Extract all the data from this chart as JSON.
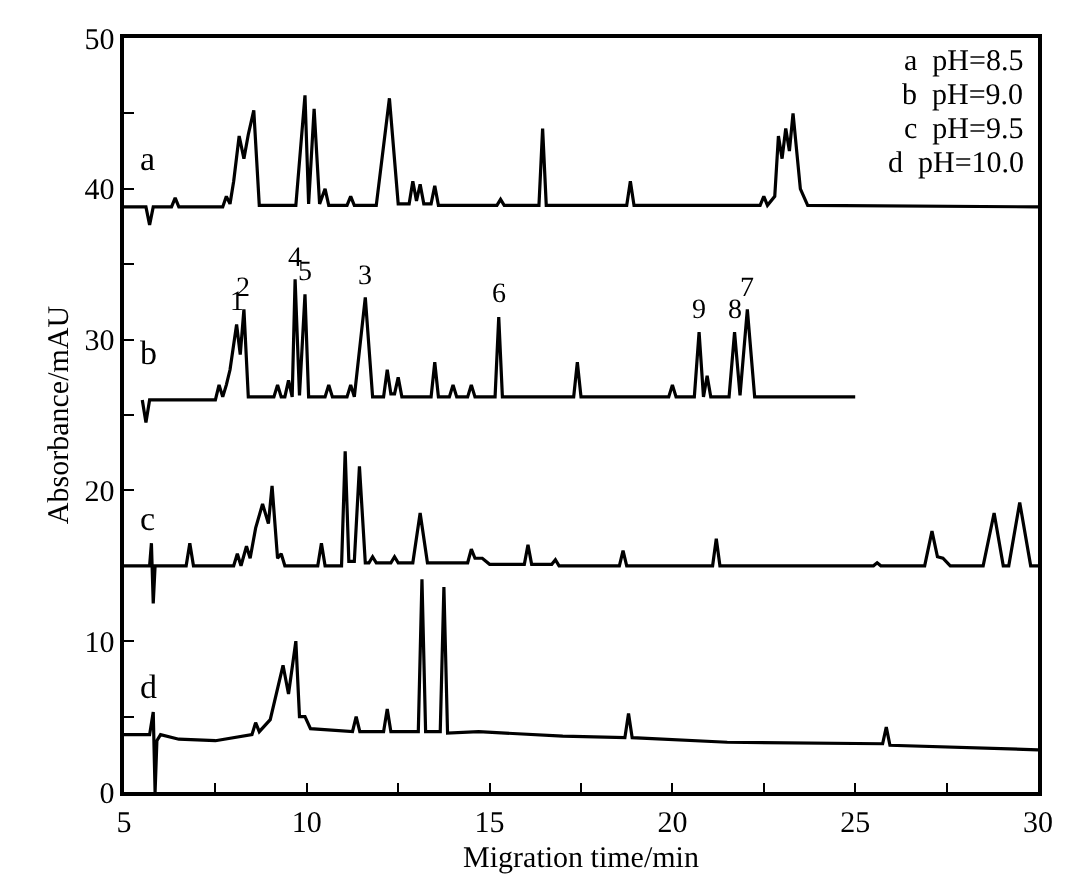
{
  "chart_data": {
    "type": "line",
    "xlabel": "Migration time/min",
    "ylabel": "Absorbance/mAU",
    "xlim": [
      5,
      30
    ],
    "ylim": [
      0,
      50
    ],
    "xticks": [
      5,
      {
        "value": 7.5,
        "label": null
      },
      10,
      {
        "value": 12.5,
        "label": null
      },
      15,
      {
        "value": 17.5,
        "label": null
      },
      20,
      {
        "value": 22.5,
        "label": null
      },
      25,
      {
        "value": 27.5,
        "label": null
      },
      30
    ],
    "yticks": [
      0,
      {
        "value": 5,
        "label": null
      },
      10,
      {
        "value": 15,
        "label": null
      },
      20,
      {
        "value": 25,
        "label": null
      },
      30,
      {
        "value": 35,
        "label": null
      },
      40,
      {
        "value": 45,
        "label": null
      },
      50
    ],
    "legend": false,
    "marker": "none",
    "line_style": "solid",
    "series": [
      {
        "name": "a",
        "color": "#000000",
        "x": [
          5,
          5.6,
          5.7,
          5.8,
          6.3,
          6.4,
          6.5,
          7.7,
          7.8,
          7.9,
          8.0,
          8.15,
          8.28,
          8.4,
          8.55,
          8.7,
          9.7,
          9.95,
          10.05,
          10.2,
          10.35,
          10.5,
          10.6,
          11.1,
          11.2,
          11.3,
          11.9,
          12.26,
          12.5,
          12.8,
          12.9,
          13.0,
          13.1,
          13.2,
          13.4,
          13.5,
          13.6,
          15.2,
          15.3,
          15.4,
          16.35,
          16.45,
          16.55,
          18.75,
          18.85,
          18.95,
          22.4,
          22.5,
          22.6,
          22.8,
          22.9,
          23.0,
          23.1,
          23.2,
          23.3,
          23.5,
          23.7,
          30
        ],
        "values": [
          38.8,
          38.8,
          37.6,
          38.8,
          38.8,
          39.4,
          38.8,
          38.8,
          39.5,
          39,
          40.5,
          43.5,
          42,
          43.6,
          45.2,
          38.9,
          38.9,
          46.2,
          39,
          45.3,
          39,
          40,
          38.9,
          38.9,
          39.5,
          38.9,
          38.9,
          46,
          39,
          39,
          40.5,
          39.2,
          40.3,
          39,
          39,
          40.2,
          38.9,
          38.9,
          39.3,
          38.9,
          38.9,
          44,
          38.9,
          38.9,
          40.5,
          38.9,
          38.9,
          39.5,
          38.9,
          39.5,
          43.5,
          42,
          44,
          42.5,
          45,
          40,
          38.9,
          38.8
        ]
      },
      {
        "name": "b",
        "color": "#000000",
        "x": [
          5.5,
          5.6,
          5.7,
          7.5,
          7.6,
          7.7,
          7.8,
          7.9,
          8.08,
          8.18,
          8.28,
          8.4,
          9.1,
          9.2,
          9.3,
          9.4,
          9.5,
          9.6,
          9.68,
          9.8,
          9.95,
          10.05,
          10.5,
          10.6,
          10.7,
          11.1,
          11.2,
          11.3,
          11.6,
          11.8,
          12.1,
          12.2,
          12.3,
          12.4,
          12.5,
          12.6,
          13.4,
          13.5,
          13.6,
          13.9,
          14.0,
          14.1,
          14.4,
          14.5,
          14.6,
          15.15,
          15.25,
          15.35,
          17.3,
          17.4,
          17.5,
          19.9,
          20.0,
          20.1,
          20.6,
          20.73,
          20.85,
          20.95,
          21.05,
          21.55,
          21.7,
          21.85,
          22.05,
          22.25,
          25
        ],
        "values": [
          26,
          24.5,
          26,
          26,
          27,
          26.2,
          27,
          28,
          31,
          29,
          32,
          26.2,
          26.2,
          27,
          26.2,
          26.2,
          27.3,
          26.2,
          34,
          26.3,
          33,
          26.2,
          26.2,
          27,
          26.2,
          26.2,
          27,
          26.2,
          32.8,
          26.2,
          26.2,
          28,
          26.4,
          26.4,
          27.5,
          26.2,
          26.2,
          28.5,
          26.2,
          26.2,
          27,
          26.2,
          26.2,
          27,
          26.2,
          26.2,
          31.5,
          26.2,
          26.2,
          28.5,
          26.2,
          26.2,
          27,
          26.2,
          26.2,
          30.5,
          26.2,
          27.6,
          26.2,
          26.2,
          30.5,
          26.3,
          32,
          26.2,
          26.2
        ]
      },
      {
        "name": "c",
        "color": "#000000",
        "x": [
          5,
          5.7,
          5.75,
          5.8,
          5.85,
          6.7,
          6.8,
          6.9,
          8.0,
          8.1,
          8.2,
          8.35,
          8.45,
          8.6,
          8.79,
          8.95,
          9.05,
          9.2,
          9.3,
          9.4,
          10.3,
          10.4,
          10.5,
          10.95,
          11.05,
          11.15,
          11.3,
          11.44,
          11.6,
          11.7,
          11.8,
          11.9,
          12.3,
          12.4,
          12.5,
          12.9,
          13.1,
          13.3,
          14.4,
          14.5,
          14.6,
          14.8,
          15.0,
          15.95,
          16.05,
          16.15,
          16.7,
          16.8,
          16.9,
          18.55,
          18.65,
          18.75,
          21.1,
          21.2,
          21.3,
          25.5,
          25.6,
          25.7,
          26.9,
          27.1,
          27.25,
          27.4,
          27.6,
          28.5,
          28.8,
          29.05,
          29.2,
          29.5,
          29.8,
          30
        ],
        "values": [
          15,
          15,
          16.5,
          12.5,
          15,
          15,
          16.5,
          15,
          15,
          15.8,
          15,
          16.3,
          15.5,
          17.5,
          19.1,
          17.8,
          20.3,
          15.5,
          15.8,
          15,
          15,
          16.5,
          15,
          15,
          22.6,
          15.3,
          15.3,
          21.6,
          15.2,
          15.2,
          15.6,
          15.2,
          15.2,
          15.6,
          15.2,
          15.2,
          18.5,
          15.2,
          15.2,
          16.1,
          15.5,
          15.5,
          15.1,
          15.1,
          16.4,
          15.1,
          15.1,
          15.4,
          15,
          15,
          16,
          15,
          15,
          16.8,
          15,
          15,
          15.2,
          15,
          15,
          17.3,
          15.6,
          15.5,
          15,
          15,
          18.5,
          15,
          15,
          19.2,
          15,
          15
        ]
      },
      {
        "name": "d",
        "color": "#000000",
        "x": [
          5,
          5.7,
          5.8,
          5.85,
          5.9,
          6.0,
          6.5,
          7.5,
          8.5,
          8.6,
          8.7,
          9.0,
          9.35,
          9.5,
          9.7,
          9.8,
          9.95,
          10.1,
          11.25,
          11.35,
          11.45,
          12.1,
          12.2,
          12.3,
          13.05,
          13.15,
          13.25,
          13.65,
          13.75,
          13.85,
          14.7,
          17,
          18.7,
          18.8,
          18.9,
          21.5,
          25.75,
          25.85,
          25.95,
          30
        ],
        "values": [
          3.8,
          3.8,
          5.3,
          0,
          3.4,
          3.8,
          3.5,
          3.4,
          3.8,
          4.6,
          4,
          4.8,
          8.4,
          6.5,
          10,
          5,
          5,
          4.2,
          4,
          5,
          4,
          4,
          5.5,
          4,
          4,
          14.1,
          4,
          4,
          13.6,
          3.9,
          4,
          3.7,
          3.6,
          5.2,
          3.6,
          3.3,
          3.2,
          4.3,
          3.1,
          2.8
        ]
      }
    ],
    "annotations": [
      "a  pH=8.5",
      "b  pH=9.0",
      "c  pH=9.5",
      "d  pH=10.0",
      {
        "text": "1",
        "x": 8.08,
        "y": 31
      },
      {
        "text": "2",
        "x": 8.28,
        "y": 32
      },
      {
        "text": "4",
        "x": 9.68,
        "y": 34
      },
      {
        "text": "5",
        "x": 9.95,
        "y": 33
      },
      {
        "text": "3",
        "x": 11.6,
        "y": 32.8
      },
      {
        "text": "6",
        "x": 15.25,
        "y": 31.5
      },
      {
        "text": "9",
        "x": 20.73,
        "y": 30.5
      },
      {
        "text": "8",
        "x": 21.7,
        "y": 30.5
      },
      {
        "text": "7",
        "x": 22.05,
        "y": 32
      }
    ]
  }
}
